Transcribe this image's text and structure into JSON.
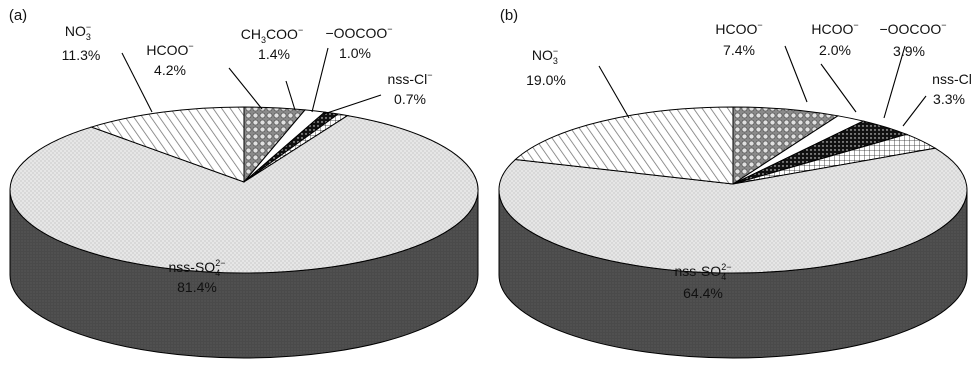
{
  "chart_data": [
    {
      "type": "pie",
      "panel_label": "(a)",
      "slices": [
        {
          "label": "nss-SO42−",
          "label_base": "nss-SO",
          "label_sub": "4",
          "label_sup": "2−",
          "value": 81.4,
          "value_label": "81.4%",
          "pattern": "dots-light"
        },
        {
          "label": "NO3−",
          "label_base": "NO",
          "label_sub": "3",
          "label_sup": "−",
          "value": 11.3,
          "value_label": "11.3%",
          "pattern": "hatch"
        },
        {
          "label": "HCOO−",
          "label_base": "HCOO",
          "label_sub": "",
          "label_sup": "−",
          "value": 4.2,
          "value_label": "4.2%",
          "pattern": "balls"
        },
        {
          "label": "CH3COO−",
          "label_base": "CH",
          "label_sub": "3",
          "label_tail": "COO",
          "label_sup": "−",
          "value": 1.4,
          "value_label": "1.4%",
          "pattern": "white"
        },
        {
          "label": "−OOCOO−",
          "label_base": "−OOCOO",
          "label_sub": "",
          "label_sup": "−",
          "value": 1.0,
          "value_label": "1.0%",
          "pattern": "black-dots"
        },
        {
          "label": "nss-Cl−",
          "label_base": "nss-Cl",
          "label_sub": "",
          "label_sup": "−",
          "value": 0.7,
          "value_label": "0.7%",
          "pattern": "grid"
        }
      ]
    },
    {
      "type": "pie",
      "panel_label": "(b)",
      "slices": [
        {
          "label": "nss-SO42−",
          "label_base": "nss-SO",
          "label_sub": "4",
          "label_sup": "2−",
          "value": 64.4,
          "value_label": "64.4%",
          "pattern": "dots-light"
        },
        {
          "label": "NO3−",
          "label_base": "NO",
          "label_sub": "3",
          "label_sup": "−",
          "value": 19.0,
          "value_label": "19.0%",
          "pattern": "hatch"
        },
        {
          "label": "HCOO−",
          "label_base": "HCOO",
          "label_sub": "",
          "label_sup": "−",
          "value": 7.4,
          "value_label": "7.4%",
          "pattern": "balls"
        },
        {
          "label": "HCOO−",
          "label_base": "HCOO",
          "label_sub": "",
          "label_sup": "−",
          "value": 2.0,
          "value_label": "2.0%",
          "pattern": "white"
        },
        {
          "label": "−OOCOO−",
          "label_base": "−OOCOO",
          "label_sub": "",
          "label_sup": "−",
          "value": 3.9,
          "value_label": "3.9%",
          "pattern": "black-dots"
        },
        {
          "label": "nss-Cl",
          "label_base": "nss-Cl",
          "label_sub": "",
          "label_sup": "",
          "value": 3.3,
          "value_label": "3.3%",
          "pattern": "grid"
        }
      ]
    }
  ],
  "colors": {
    "side": "#4a4a4a",
    "top_light": "#e4e4e4",
    "outline": "#000000"
  }
}
